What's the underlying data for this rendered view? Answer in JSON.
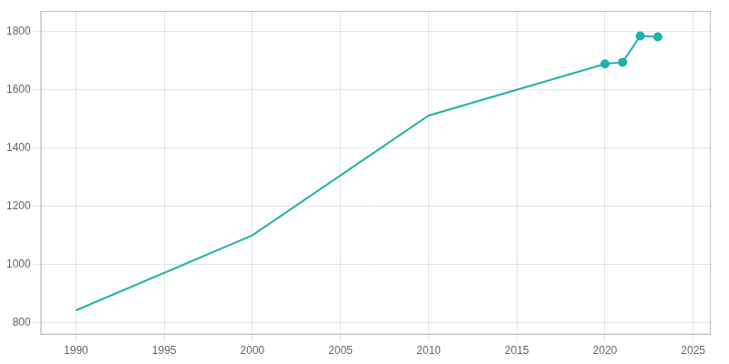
{
  "chart_data": {
    "type": "line",
    "x": [
      1990,
      2000,
      2010,
      2020,
      2021,
      2022,
      2023
    ],
    "series": [
      {
        "color": "#20b2aa",
        "marker": "none",
        "values": [
          843,
          1100,
          1511,
          1688,
          1694,
          1784,
          1781
        ]
      },
      {
        "type": "scatter",
        "color": "#20b2aa",
        "marker": "circle",
        "values": [
          null,
          null,
          null,
          1688,
          1694,
          1784,
          1781
        ]
      }
    ],
    "xlim": [
      1988,
      2026
    ],
    "ylim": [
      760,
      1870
    ],
    "xticks": [
      1990,
      1995,
      2000,
      2005,
      2010,
      2015,
      2020,
      2025
    ],
    "yticks": [
      800,
      1000,
      1200,
      1400,
      1600,
      1800
    ],
    "grid": true
  }
}
